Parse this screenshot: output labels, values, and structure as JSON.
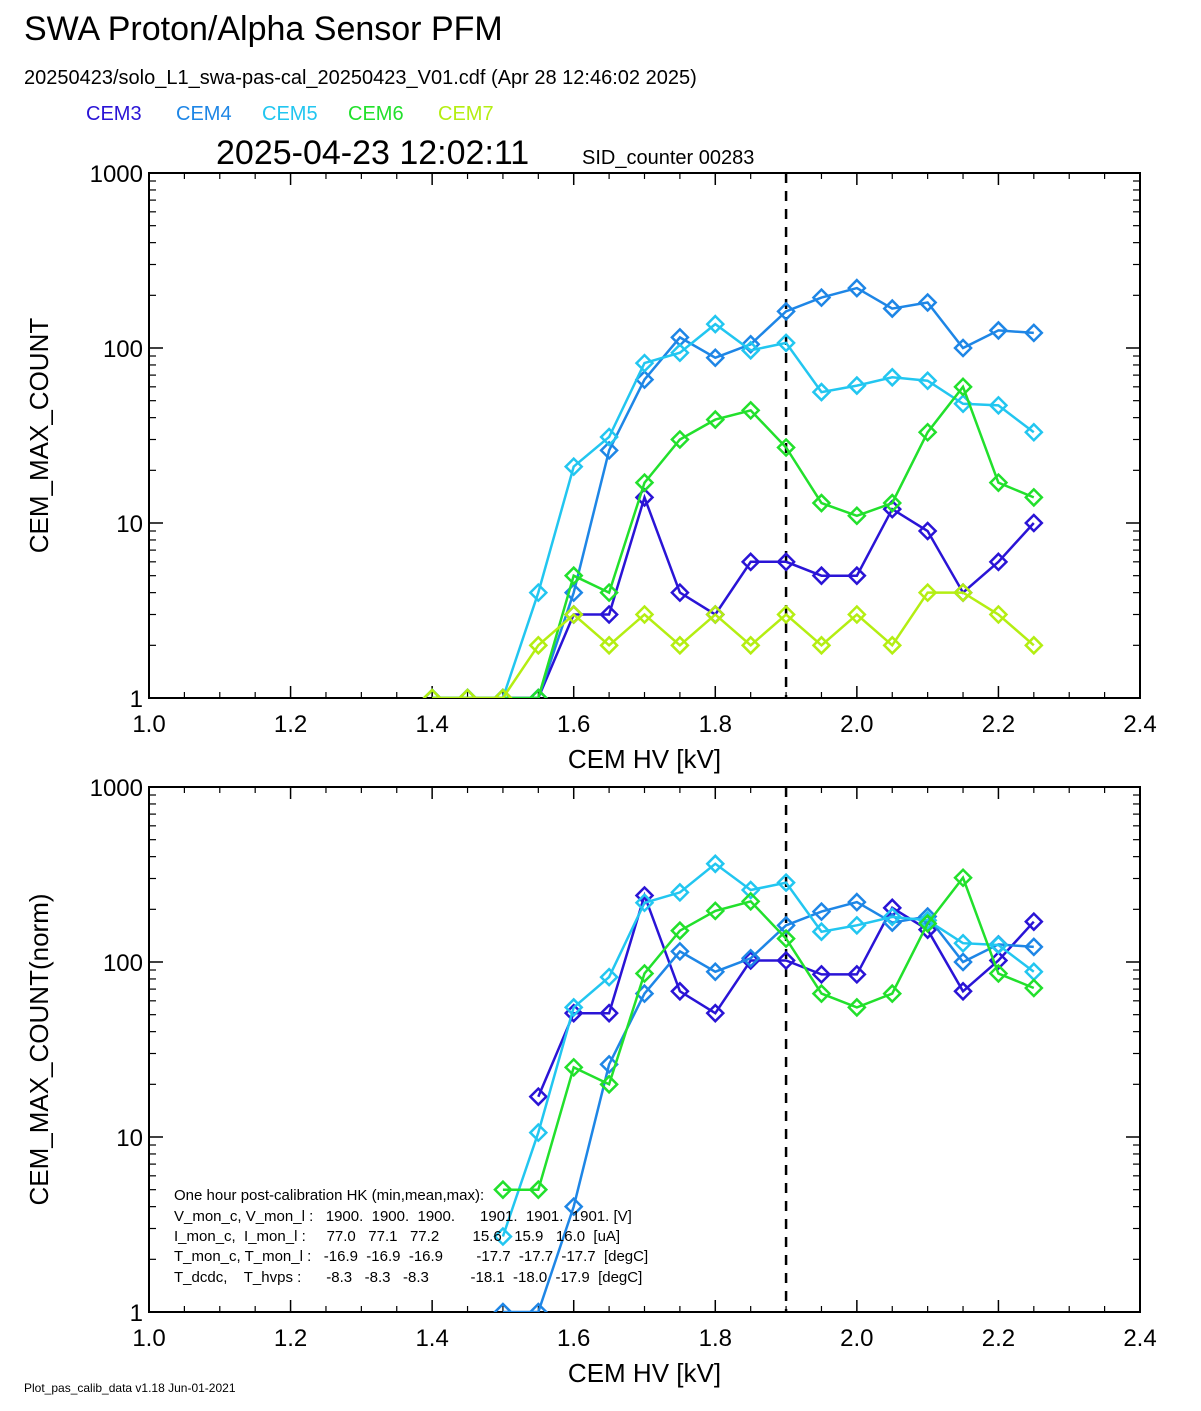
{
  "header": {
    "title": "SWA Proton/Alpha Sensor PFM",
    "subtitle": "20250423/solo_L1_swa-pas-cal_20250423_V01.cdf  (Apr 28 12:46:02 2025)",
    "timestamp": "2025-04-23 12:02:11",
    "sid_counter": "SID_counter 00283"
  },
  "legend": [
    {
      "name": "CEM3",
      "color": "#2a14d6"
    },
    {
      "name": "CEM4",
      "color": "#1e86e6"
    },
    {
      "name": "CEM5",
      "color": "#22c6f0"
    },
    {
      "name": "CEM6",
      "color": "#22e02c"
    },
    {
      "name": "CEM7",
      "color": "#b4ee12"
    }
  ],
  "hk": {
    "title": "One hour post-calibration HK (min,mean,max):",
    "rows": [
      "V_mon_c, V_mon_l :   1900.  1900.  1900.      1901.  1901.  1901. [V]",
      "I_mon_c,  I_mon_l :     77.0   77.1   77.2        15.6   15.9   16.0  [uA]",
      "T_mon_c, T_mon_l :   -16.9  -16.9  -16.9        -17.7  -17.7  -17.7  [degC]",
      "T_dcdc,    T_hvps :      -8.3   -8.3   -8.3          -18.1  -18.0  -17.9  [degC]"
    ]
  },
  "footer": "Plot_pas_calib_data v1.18 Jun-01-2021",
  "chart_data": [
    {
      "type": "line",
      "xlabel": "CEM HV [kV]",
      "ylabel": "CEM_MAX_COUNT",
      "xlim": [
        1.0,
        2.4
      ],
      "ylim": [
        1,
        1000
      ],
      "yscale": "log",
      "xticks": [
        "1.0",
        "1.2",
        "1.4",
        "1.6",
        "1.8",
        "2.0",
        "2.2",
        "2.4"
      ],
      "yticks": [
        "1",
        "10",
        "100",
        "1000"
      ],
      "vline_x": 1.9,
      "x": [
        1.4,
        1.45,
        1.5,
        1.55,
        1.6,
        1.65,
        1.7,
        1.75,
        1.8,
        1.85,
        1.9,
        1.95,
        2.0,
        2.05,
        2.1,
        2.15,
        2.2,
        2.25
      ],
      "series": [
        {
          "name": "CEM3",
          "color": "#2a14d6",
          "values": [
            1,
            1,
            1,
            1,
            3,
            3,
            14,
            4,
            3,
            6,
            6,
            5,
            5,
            12,
            9,
            4,
            6,
            10
          ]
        },
        {
          "name": "CEM4",
          "color": "#1e86e6",
          "values": [
            1,
            1,
            1,
            1,
            4,
            26,
            66,
            115,
            88,
            105,
            162,
            194,
            220,
            168,
            182,
            100,
            126,
            122
          ]
        },
        {
          "name": "CEM5",
          "color": "#22c6f0",
          "values": [
            1,
            1,
            1,
            4,
            21,
            31,
            82,
            94,
            137,
            97,
            107,
            56,
            61,
            68,
            65,
            48,
            47,
            33
          ]
        },
        {
          "name": "CEM6",
          "color": "#22e02c",
          "values": [
            1,
            1,
            1,
            1,
            5,
            4,
            17,
            30,
            39,
            44,
            27,
            13,
            11,
            13,
            33,
            60,
            17,
            14
          ]
        },
        {
          "name": "CEM7",
          "color": "#b4ee12",
          "values": [
            1,
            1,
            1,
            2,
            3,
            2,
            3,
            2,
            3,
            2,
            3,
            2,
            3,
            2,
            4,
            4,
            3,
            2
          ]
        }
      ]
    },
    {
      "type": "line",
      "xlabel": "CEM HV [kV]",
      "ylabel": "CEM_MAX_COUNT(norm)",
      "xlim": [
        1.0,
        2.4
      ],
      "ylim": [
        1,
        1000
      ],
      "yscale": "log",
      "xticks": [
        "1.0",
        "1.2",
        "1.4",
        "1.6",
        "1.8",
        "2.0",
        "2.2",
        "2.4"
      ],
      "yticks": [
        "1",
        "10",
        "100",
        "1000"
      ],
      "vline_x": 1.9,
      "x": [
        1.5,
        1.55,
        1.6,
        1.65,
        1.7,
        1.75,
        1.8,
        1.85,
        1.9,
        1.95,
        2.0,
        2.05,
        2.1,
        2.15,
        2.2,
        2.25
      ],
      "series": [
        {
          "name": "CEM3",
          "color": "#2a14d6",
          "values": [
            null,
            17,
            51,
            51,
            240,
            68,
            51,
            102,
            102,
            85,
            85,
            204,
            153,
            68,
            102,
            170
          ]
        },
        {
          "name": "CEM4",
          "color": "#1e86e6",
          "values": [
            1,
            1,
            4,
            26,
            66,
            115,
            88,
            105,
            162,
            194,
            220,
            168,
            182,
            100,
            126,
            122
          ]
        },
        {
          "name": "CEM5",
          "color": "#22c6f0",
          "values": [
            2.7,
            10.6,
            55,
            82,
            218,
            250,
            364,
            258,
            284,
            149,
            162,
            181,
            173,
            128,
            125,
            88
          ]
        },
        {
          "name": "CEM6",
          "color": "#22e02c",
          "values": [
            5,
            5,
            25,
            20,
            86,
            151,
            196,
            222,
            136,
            66,
            55,
            66,
            166,
            303,
            86,
            71
          ]
        }
      ]
    }
  ]
}
